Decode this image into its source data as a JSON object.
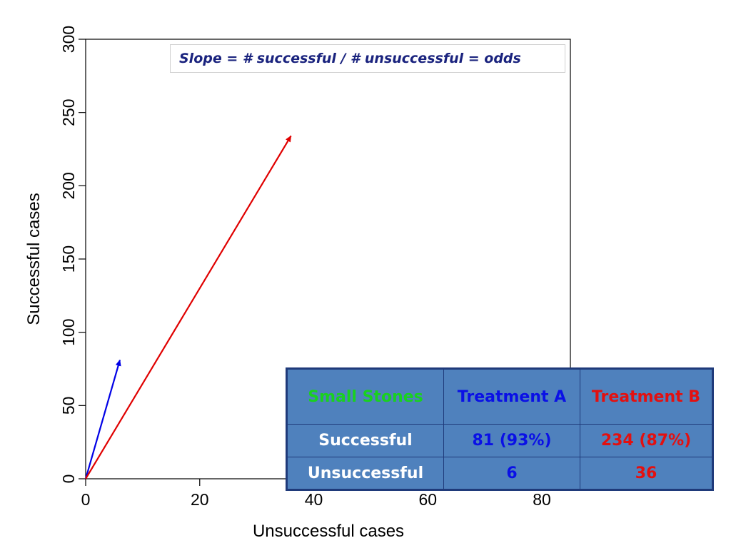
{
  "chart_data": {
    "type": "line",
    "xlabel": "Unsuccessful cases",
    "ylabel": "Successful cases",
    "xlim": [
      0,
      85
    ],
    "ylim": [
      0,
      300
    ],
    "xticks": [
      0,
      20,
      40,
      60,
      80
    ],
    "yticks": [
      0,
      50,
      100,
      150,
      200,
      250,
      300
    ],
    "series": [
      {
        "color": "#0000e6",
        "points": [
          [
            0,
            0
          ],
          [
            6,
            81
          ]
        ]
      },
      {
        "color": "#e00000",
        "points": [
          [
            0,
            0
          ],
          [
            36,
            234
          ]
        ]
      }
    ],
    "annotation": "Slope = # successful / # unsuccessful = odds",
    "grid": false
  },
  "table": {
    "corner": "Small Stones",
    "headers": [
      "Treatment A",
      "Treatment B"
    ],
    "rows": [
      {
        "label": "Successful",
        "cells": [
          "81 (93%)",
          "234 (87%)"
        ]
      },
      {
        "label": "Unsuccessful",
        "cells": [
          "6",
          "36"
        ]
      }
    ]
  },
  "colors": {
    "table_bg": "#4f81bd",
    "treatment_a": "#0a10e6",
    "treatment_b": "#e31010",
    "corner": "#19d11f"
  }
}
